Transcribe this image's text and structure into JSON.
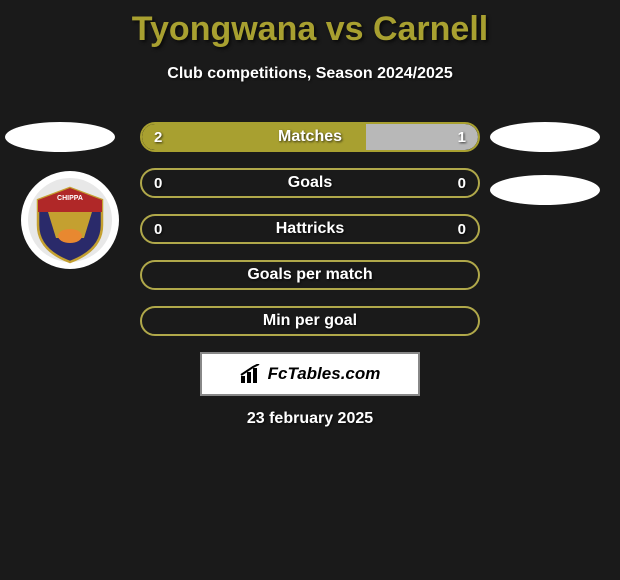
{
  "title": {
    "text": "Tyongwana vs Carnell",
    "color": "#a8a030"
  },
  "subtitle": "Club competitions, Season 2024/2025",
  "colors": {
    "left_fill": "#a8a030",
    "right_fill": "#b8b8b8",
    "border": "#a8a030",
    "empty_border": "#b0a84a"
  },
  "rows": [
    {
      "label": "Matches",
      "left_val": "2",
      "right_val": "1",
      "left_pct": 66.6,
      "right_pct": 33.3,
      "filled": true
    },
    {
      "label": "Goals",
      "left_val": "0",
      "right_val": "0",
      "left_pct": 0,
      "right_pct": 0,
      "filled": false
    },
    {
      "label": "Hattricks",
      "left_val": "0",
      "right_val": "0",
      "left_pct": 0,
      "right_pct": 0,
      "filled": false
    },
    {
      "label": "Goals per match",
      "left_val": "",
      "right_val": "",
      "left_pct": 0,
      "right_pct": 0,
      "filled": false
    },
    {
      "label": "Min per goal",
      "left_val": "",
      "right_val": "",
      "left_pct": 0,
      "right_pct": 0,
      "filled": false
    }
  ],
  "brand": "FcTables.com",
  "date": "23 february 2025"
}
